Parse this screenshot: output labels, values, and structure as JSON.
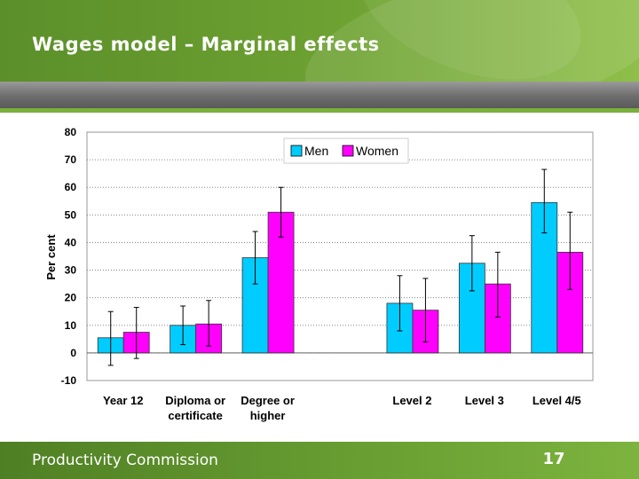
{
  "slide": {
    "title": "Wages model – Marginal effects",
    "footer": "Productivity Commission",
    "page_number": "17"
  },
  "colors": {
    "men": "#00ccff",
    "women": "#ff00ff",
    "header_green": "#6ea232",
    "plot_bg": "#ffffff"
  },
  "chart_data": {
    "type": "bar",
    "title": "",
    "xlabel": "",
    "ylabel": "Per cent",
    "ylim": [
      -10,
      80
    ],
    "yticks": [
      -10,
      0,
      10,
      20,
      30,
      40,
      50,
      60,
      70,
      80
    ],
    "grid": true,
    "legend_position": "top-center",
    "categories": [
      {
        "lines": [
          "Year 12"
        ]
      },
      {
        "lines": [
          "Diploma or",
          "certificate"
        ]
      },
      {
        "lines": [
          "Degree or",
          "higher"
        ]
      },
      {
        "lines": [
          ""
        ]
      },
      {
        "lines": [
          "Level 2"
        ]
      },
      {
        "lines": [
          "Level 3"
        ]
      },
      {
        "lines": [
          "Level 4/5"
        ]
      }
    ],
    "series": [
      {
        "name": "Men",
        "color": "#00ccff",
        "values": [
          5.5,
          10.0,
          34.5,
          null,
          18.0,
          32.5,
          54.5
        ],
        "error_low": [
          -4.5,
          3.0,
          25.0,
          null,
          8.0,
          22.5,
          43.5
        ],
        "error_high": [
          15.0,
          17.0,
          44.0,
          null,
          28.0,
          42.5,
          66.5
        ]
      },
      {
        "name": "Women",
        "color": "#ff00ff",
        "values": [
          7.5,
          10.5,
          51.0,
          null,
          15.5,
          25.0,
          36.5
        ],
        "error_low": [
          -2.0,
          2.5,
          42.0,
          null,
          4.0,
          13.0,
          23.0
        ],
        "error_high": [
          16.5,
          19.0,
          60.0,
          null,
          27.0,
          36.5,
          51.0
        ]
      }
    ]
  }
}
